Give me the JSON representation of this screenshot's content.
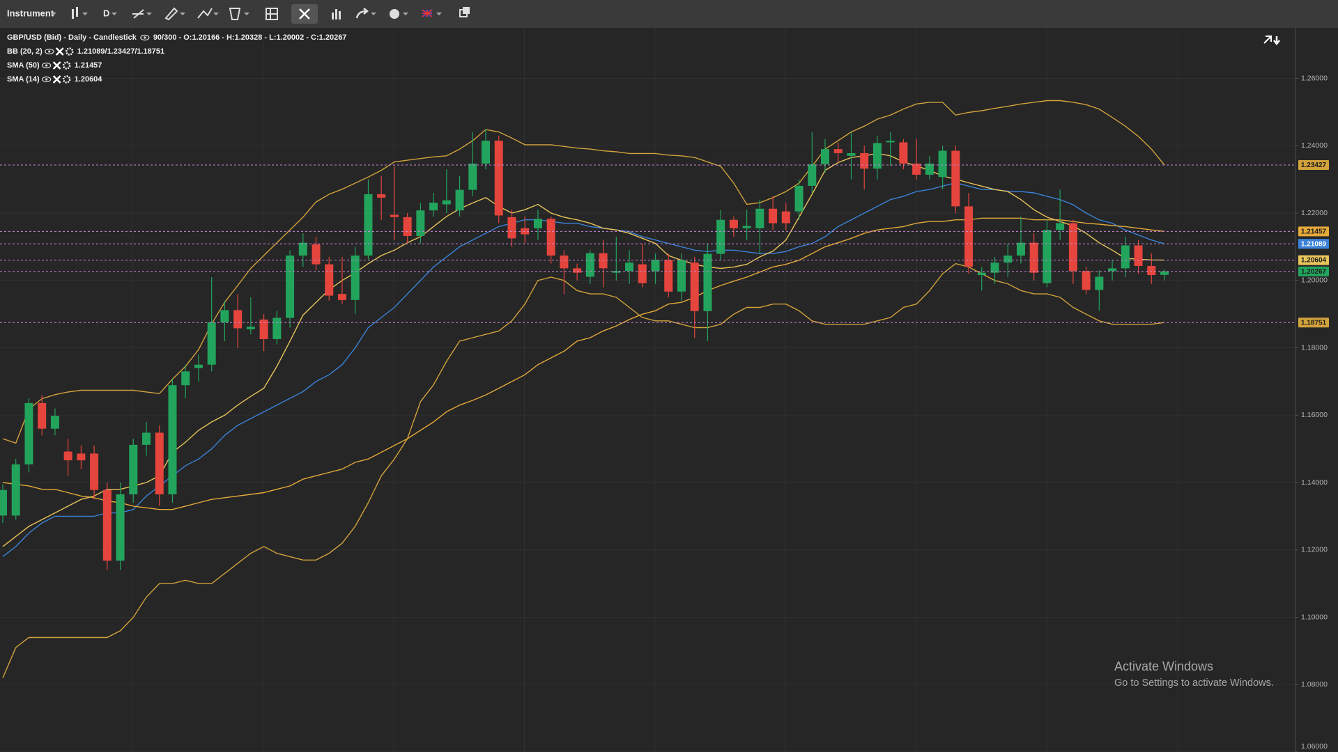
{
  "toolbar": {
    "instrument": "Instrument",
    "timeframe": "D"
  },
  "chart_data": {
    "type": "candlestick",
    "title": "GBP/USD (Bid) - Daily - Candlestick",
    "ohlc_text": "90/300 - O:1.20166 - H:1.20328 - L:1.20002 - C:1.20267",
    "up_color": "#22a45d",
    "down_color": "#e5453d",
    "open": [
      1.1302,
      1.1302,
      1.1454,
      1.1636,
      1.156,
      1.1492,
      1.1486,
      1.1486,
      1.1378,
      1.1168,
      1.1365,
      1.1512,
      1.1548,
      1.1365,
      1.1689,
      1.174,
      1.175,
      1.1876,
      1.1912,
      1.1855,
      1.1884,
      1.1826,
      1.1889,
      1.2074,
      1.2107,
      1.2048,
      1.196,
      1.1942,
      1.2074,
      1.2256,
      1.2195,
      1.2188,
      1.2132,
      1.2208,
      1.2226,
      1.2208,
      1.2269,
      1.2347,
      1.2415,
      1.2188,
      1.2155,
      1.2155,
      1.2183,
      1.2074,
      1.2036,
      1.2011,
      1.2081,
      1.2023,
      1.2028,
      1.2048,
      1.2028,
      1.2061,
      1.1967,
      1.2053,
      1.1909,
      1.2079,
      1.218,
      1.2155,
      1.2155,
      1.2213,
      1.2205,
      1.2205,
      1.2281,
      1.2345,
      1.239,
      1.237,
      1.2378,
      1.2332,
      1.241,
      1.241,
      1.2347,
      1.2314,
      1.2307,
      1.2385,
      1.222,
      1.2016,
      1.2023,
      1.2053,
      1.2074,
      1.2112,
      1.1992,
      1.215,
      1.217,
      1.2028,
      1.1972,
      1.2028,
      1.2036,
      1.2104,
      1.2043,
      1.20166
    ],
    "high": [
      1.1395,
      1.147,
      1.165,
      1.166,
      1.162,
      1.153,
      1.151,
      1.151,
      1.14,
      1.14,
      1.153,
      1.158,
      1.157,
      1.171,
      1.175,
      1.178,
      1.201,
      1.194,
      1.196,
      1.195,
      1.19,
      1.191,
      1.209,
      1.214,
      1.213,
      1.207,
      1.207,
      1.21,
      1.23,
      1.231,
      1.234,
      1.22,
      1.223,
      1.226,
      1.233,
      1.231,
      1.244,
      1.245,
      1.243,
      1.221,
      1.219,
      1.221,
      1.219,
      1.209,
      1.205,
      1.209,
      1.212,
      1.213,
      1.209,
      1.211,
      1.208,
      1.208,
      1.208,
      1.207,
      1.211,
      1.221,
      1.219,
      1.221,
      1.224,
      1.225,
      1.223,
      1.23,
      1.244,
      1.242,
      1.241,
      1.244,
      1.24,
      1.243,
      1.244,
      1.242,
      1.242,
      1.237,
      1.24,
      1.24,
      1.226,
      1.204,
      1.207,
      1.211,
      1.219,
      1.214,
      1.218,
      1.227,
      1.218,
      1.204,
      1.203,
      1.206,
      1.213,
      1.212,
      1.208,
      1.20328
    ],
    "low": [
      1.128,
      1.129,
      1.143,
      1.154,
      1.154,
      1.142,
      1.144,
      1.135,
      1.114,
      1.114,
      1.134,
      1.148,
      1.133,
      1.134,
      1.165,
      1.17,
      1.173,
      1.182,
      1.18,
      1.184,
      1.179,
      1.181,
      1.186,
      1.204,
      1.203,
      1.194,
      1.193,
      1.19,
      1.206,
      1.218,
      1.212,
      1.211,
      1.211,
      1.219,
      1.22,
      1.219,
      1.225,
      1.233,
      1.217,
      1.21,
      1.211,
      1.212,
      1.205,
      1.196,
      1.2,
      1.199,
      1.198,
      1.2,
      1.199,
      1.198,
      1.199,
      1.195,
      1.194,
      1.183,
      1.182,
      1.206,
      1.213,
      1.212,
      1.208,
      1.215,
      1.215,
      1.218,
      1.226,
      1.232,
      1.235,
      1.23,
      1.227,
      1.23,
      1.234,
      1.233,
      1.23,
      1.23,
      1.227,
      1.22,
      1.202,
      1.197,
      1.199,
      1.201,
      1.205,
      1.2,
      1.198,
      1.212,
      1.199,
      1.196,
      1.191,
      1.2,
      1.201,
      1.202,
      1.199,
      1.20002
    ],
    "close": [
      1.1378,
      1.1454,
      1.1636,
      1.156,
      1.1598,
      1.1466,
      1.1466,
      1.1378,
      1.1168,
      1.1365,
      1.1512,
      1.1548,
      1.1365,
      1.1689,
      1.173,
      1.175,
      1.1876,
      1.1912,
      1.1858,
      1.1863,
      1.1826,
      1.1889,
      1.2074,
      1.2112,
      1.2048,
      1.1955,
      1.1942,
      1.2074,
      1.2256,
      1.2246,
      1.2188,
      1.2132,
      1.2208,
      1.2231,
      1.2238,
      1.2269,
      1.2347,
      1.2415,
      1.2193,
      1.2125,
      1.2137,
      1.2183,
      1.2074,
      1.2036,
      1.2023,
      1.2081,
      1.2036,
      1.2028,
      1.2053,
      1.1992,
      1.2061,
      1.1967,
      1.2061,
      1.1909,
      1.2079,
      1.218,
      1.2155,
      1.2162,
      1.2213,
      1.217,
      1.217,
      1.2281,
      1.2345,
      1.239,
      1.2378,
      1.2378,
      1.2332,
      1.2408,
      1.2415,
      1.2347,
      1.2314,
      1.2347,
      1.2385,
      1.222,
      1.2041,
      1.2023,
      1.2053,
      1.2074,
      1.2112,
      1.2023,
      1.215,
      1.217,
      1.2028,
      1.1972,
      1.2011,
      1.2036,
      1.2104,
      1.2043,
      1.2016,
      1.20267
    ],
    "ylim": [
      1.06,
      1.275
    ],
    "yticks": [
      {
        "value": 1.06,
        "label": "1.06000"
      },
      {
        "value": 1.08,
        "label": "1.08000"
      },
      {
        "value": 1.1,
        "label": "1.10000"
      },
      {
        "value": 1.12,
        "label": "1.12000"
      },
      {
        "value": 1.14,
        "label": "1.14000"
      },
      {
        "value": 1.16,
        "label": "1.16000"
      },
      {
        "value": 1.18,
        "label": "1.18000"
      },
      {
        "value": 1.2,
        "label": "1.20000"
      },
      {
        "value": 1.22,
        "label": "1.22000"
      },
      {
        "value": 1.24,
        "label": "1.24000"
      },
      {
        "value": 1.26,
        "label": "1.26000"
      }
    ],
    "grid": true,
    "price_line_color": "#c886d6",
    "indicators": [
      {
        "name": "BB (20, 2)",
        "value_text": "1.21089/1.23427/1.18751",
        "series": [
          {
            "color": "#3b82d8",
            "values": [
              1.118,
              1.121,
              1.125,
              1.128,
              1.13,
              1.13,
              1.13,
              1.13,
              1.131,
              1.131,
              1.132,
              1.136,
              1.139,
              1.142,
              1.145,
              1.147,
              1.15,
              1.154,
              1.157,
              1.159,
              1.161,
              1.163,
              1.165,
              1.167,
              1.17,
              1.172,
              1.175,
              1.18,
              1.186,
              1.189,
              1.192,
              1.196,
              1.2,
              1.204,
              1.207,
              1.21,
              1.212,
              1.214,
              1.216,
              1.217,
              1.218,
              1.218,
              1.2175,
              1.217,
              1.217,
              1.216,
              1.2155,
              1.215,
              1.2145,
              1.213,
              1.212,
              1.211,
              1.21,
              1.209,
              1.2086,
              1.209,
              1.209,
              1.2085,
              1.208,
              1.208,
              1.2086,
              1.21,
              1.211,
              1.213,
              1.216,
              1.218,
              1.22,
              1.222,
              1.224,
              1.225,
              1.2264,
              1.227,
              1.228,
              1.229,
              1.228,
              1.227,
              1.227,
              1.2265,
              1.2264,
              1.226,
              1.225,
              1.224,
              1.2225,
              1.22,
              1.218,
              1.217,
              1.215,
              1.2135,
              1.212,
              1.21089
            ]
          },
          {
            "color": "#d2a23c",
            "values": [
              1.153,
              1.1517,
              1.1618,
              1.1649,
              1.1661,
              1.1669,
              1.1674,
              1.1674,
              1.1674,
              1.1674,
              1.1674,
              1.1669,
              1.1664,
              1.1707,
              1.1745,
              1.1795,
              1.1871,
              1.1935,
              1.1985,
              1.2036,
              1.2074,
              1.2112,
              1.215,
              1.2188,
              1.2233,
              1.2256,
              1.2271,
              1.2289,
              1.2307,
              1.2327,
              1.2352,
              1.2357,
              1.2362,
              1.2367,
              1.237,
              1.239,
              1.2415,
              1.2448,
              1.2441,
              1.2423,
              1.2403,
              1.2403,
              1.2403,
              1.2398,
              1.2393,
              1.239,
              1.2385,
              1.2382,
              1.2377,
              1.2377,
              1.2377,
              1.2372,
              1.237,
              1.2365,
              1.2352,
              1.2339,
              1.2289,
              1.2226,
              1.2231,
              1.2246,
              1.2264,
              1.2289,
              1.2339,
              1.239,
              1.2415,
              1.2441,
              1.2458,
              1.2479,
              1.2491,
              1.2509,
              1.2524,
              1.2529,
              1.2529,
              1.2491,
              1.2499,
              1.2504,
              1.2511,
              1.2517,
              1.2524,
              1.2529,
              1.2534,
              1.2534,
              1.2529,
              1.2522,
              1.2509,
              1.2484,
              1.2458,
              1.2428,
              1.239,
              1.23427
            ]
          },
          {
            "color": "#d2a23c",
            "values": [
              1.082,
              1.091,
              1.094,
              1.094,
              1.094,
              1.094,
              1.094,
              1.094,
              1.094,
              1.096,
              1.1,
              1.106,
              1.11,
              1.11,
              1.111,
              1.11,
              1.11,
              1.113,
              1.116,
              1.119,
              1.121,
              1.119,
              1.118,
              1.117,
              1.117,
              1.119,
              1.122,
              1.127,
              1.134,
              1.142,
              1.147,
              1.153,
              1.164,
              1.169,
              1.176,
              1.182,
              1.183,
              1.184,
              1.185,
              1.188,
              1.193,
              1.2,
              1.201,
              1.2,
              1.197,
              1.196,
              1.196,
              1.195,
              1.192,
              1.189,
              1.188,
              1.188,
              1.187,
              1.186,
              1.186,
              1.187,
              1.19,
              1.192,
              1.192,
              1.193,
              1.193,
              1.191,
              1.188,
              1.187,
              1.187,
              1.187,
              1.187,
              1.188,
              1.189,
              1.192,
              1.193,
              1.197,
              1.202,
              1.205,
              1.204,
              1.202,
              1.2,
              1.199,
              1.197,
              1.196,
              1.196,
              1.195,
              1.192,
              1.19,
              1.188,
              1.187,
              1.187,
              1.187,
              1.187,
              1.18751
            ]
          }
        ]
      },
      {
        "name": "SMA (50)",
        "series": [
          {
            "color": "#e4a93a",
            "values": [
              1.14,
              1.1395,
              1.139,
              1.138,
              1.138,
              1.137,
              1.136,
              1.1355,
              1.1345,
              1.134,
              1.133,
              1.1325,
              1.132,
              1.132,
              1.133,
              1.134,
              1.135,
              1.1355,
              1.136,
              1.1365,
              1.137,
              1.138,
              1.139,
              1.141,
              1.142,
              1.143,
              1.144,
              1.146,
              1.147,
              1.149,
              1.151,
              1.153,
              1.1555,
              1.158,
              1.161,
              1.163,
              1.1644,
              1.166,
              1.168,
              1.17,
              1.172,
              1.175,
              1.177,
              1.179,
              1.182,
              1.183,
              1.185,
              1.1865,
              1.1884,
              1.19,
              1.191,
              1.193,
              1.1935,
              1.195,
              1.197,
              1.1985,
              1.1998,
              1.201,
              1.2025,
              1.204,
              1.2048,
              1.206,
              1.208,
              1.21,
              1.2112,
              1.2125,
              1.214,
              1.215,
              1.2155,
              1.216,
              1.217,
              1.2175,
              1.2175,
              1.218,
              1.218,
              1.2185,
              1.2185,
              1.2185,
              1.2185,
              1.218,
              1.218,
              1.218,
              1.2175,
              1.217,
              1.2167,
              1.2163,
              1.216,
              1.2155,
              1.215,
              1.21457
            ]
          }
        ]
      },
      {
        "name": "SMA (14)",
        "series": [
          {
            "color": "#e9c45a",
            "values": [
              1.121,
              1.124,
              1.127,
              1.129,
              1.131,
              1.133,
              1.135,
              1.136,
              1.138,
              1.138,
              1.139,
              1.14,
              1.142,
              1.149,
              1.152,
              1.1555,
              1.158,
              1.16,
              1.163,
              1.1656,
              1.168,
              1.1745,
              1.182,
              1.1897,
              1.1935,
              1.1973,
              1.2,
              1.2023,
              1.205,
              1.2074,
              1.209,
              1.2112,
              1.213,
              1.216,
              1.219,
              1.2213,
              1.223,
              1.2246,
              1.222,
              1.22,
              1.221,
              1.2226,
              1.22,
              1.2188,
              1.218,
              1.217,
              1.2155,
              1.215,
              1.214,
              1.2125,
              1.211,
              1.2074,
              1.206,
              1.2048,
              1.204,
              1.2036,
              1.204,
              1.2048,
              1.207,
              1.2087,
              1.212,
              1.2188,
              1.2256,
              1.2327,
              1.235,
              1.2365,
              1.237,
              1.2377,
              1.237,
              1.2352,
              1.234,
              1.2327,
              1.231,
              1.2301,
              1.229,
              1.228,
              1.227,
              1.2264,
              1.224,
              1.221,
              1.2188,
              1.2175,
              1.2162,
              1.214,
              1.2112,
              1.209,
              1.2066,
              1.2063,
              1.2061,
              1.20604
            ]
          }
        ]
      }
    ]
  },
  "watermark": {
    "title": "Activate Windows",
    "text": "Go to Settings to activate Windows."
  }
}
